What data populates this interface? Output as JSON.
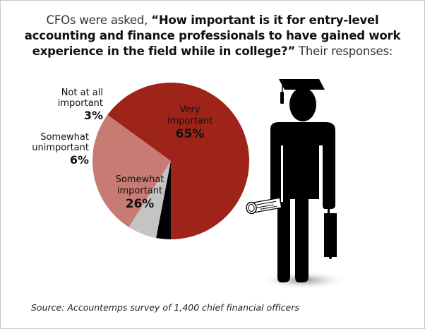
{
  "title": {
    "prefix": "CFOs were asked, ",
    "question": "“How important is it for entry-level accounting and finance professionals to have gained work experience in the field while in college?”",
    "suffix": " Their responses:"
  },
  "source": "Source: Accountemps survey of 1,400 chief financial officers",
  "chart_data": {
    "type": "pie",
    "title": "CFOs were asked, “How important is it for entry-level accounting and finance professionals to have gained work experience in the field while in college?” Their responses:",
    "categories": [
      "Very important",
      "Somewhat important",
      "Somewhat unimportant",
      "Not at all important"
    ],
    "values": [
      65,
      26,
      6,
      3
    ],
    "unit": "%",
    "colors": [
      "#9e2419",
      "#c77b72",
      "#c4c4c4",
      "#000000"
    ],
    "source": "Source: Accountemps survey of 1,400 chief financial officers"
  },
  "labels": {
    "very": {
      "line1": "Very",
      "line2": "important",
      "pct": "65%"
    },
    "somewhat": {
      "line1": "Somewhat",
      "line2": "important",
      "pct": "26%"
    },
    "unimportant": {
      "line1": "Somewhat",
      "line2": "unimportant",
      "pct": "6%"
    },
    "notatall": {
      "line1": "Not at all",
      "line2": "important",
      "pct": "3%"
    }
  },
  "illustration": "graduate-figure-icon"
}
